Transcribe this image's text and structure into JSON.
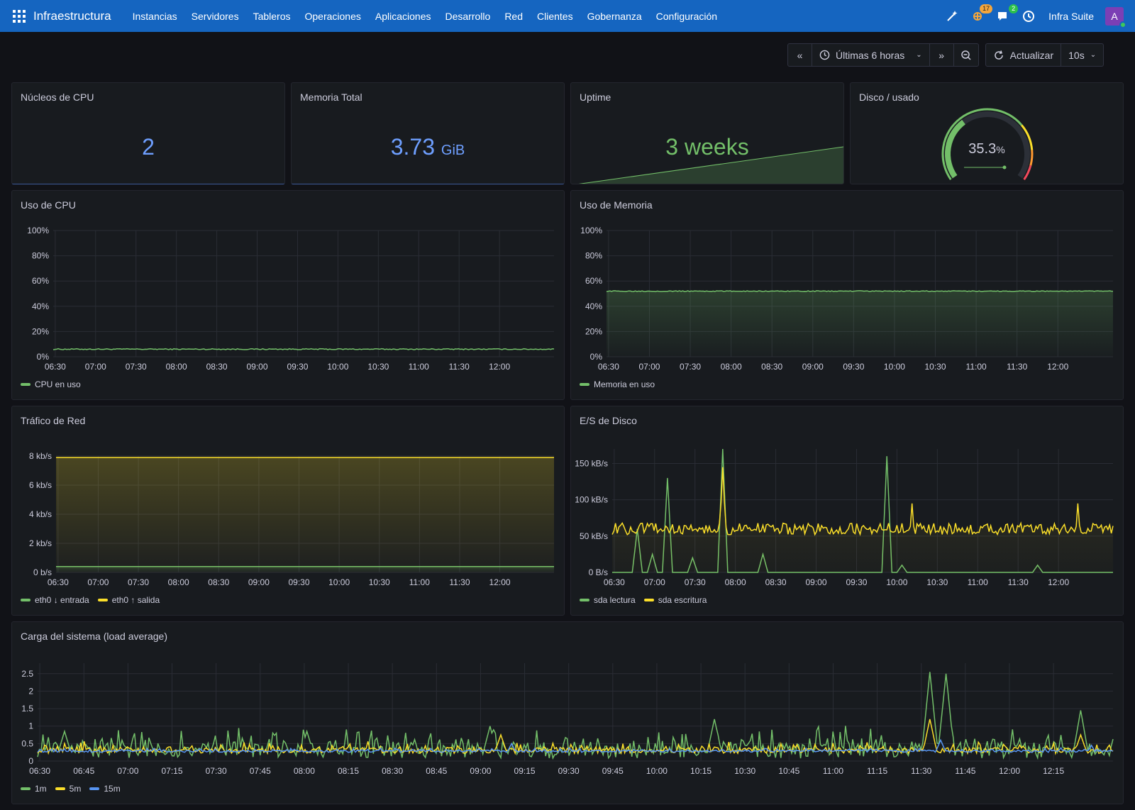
{
  "topbar": {
    "brand": "Infraestructura",
    "nav": [
      "Instancias",
      "Servidores",
      "Tableros",
      "Operaciones",
      "Aplicaciones",
      "Desarrollo",
      "Red",
      "Clientes",
      "Gobernanza",
      "Configuración"
    ],
    "icons": [
      {
        "name": "magic-wand-icon",
        "badge": ""
      },
      {
        "name": "alerts-icon",
        "badge": "17"
      },
      {
        "name": "chat-icon",
        "badge": "2"
      },
      {
        "name": "history-icon",
        "badge": ""
      }
    ],
    "org": "Infra Suite",
    "avatar": "A"
  },
  "toolbar": {
    "time_range": "Últimas 6 horas",
    "refresh_label": "Actualizar",
    "refresh_interval": "10s"
  },
  "colors": {
    "green": "#73bf69",
    "yellow": "#fade2a",
    "blue": "#5794f2",
    "stat_blue": "#6e9fff"
  },
  "stats": {
    "cpu_cores": {
      "title": "Núcleos de CPU",
      "value": "2"
    },
    "memory_total": {
      "title": "Memoria Total",
      "value": "3.73",
      "unit": "GiB"
    },
    "uptime": {
      "title": "Uptime",
      "value": "3 weeks"
    },
    "disk_used": {
      "title": "Disco / usado",
      "value": "35.3",
      "unit": "%",
      "fraction": 0.353
    }
  },
  "chart_data": [
    {
      "id": "cpu",
      "type": "line",
      "title": "Uso de CPU",
      "x_ticks": [
        "06:30",
        "07:00",
        "07:30",
        "08:00",
        "08:30",
        "09:00",
        "09:30",
        "10:00",
        "10:30",
        "11:00",
        "11:30",
        "12:00"
      ],
      "y_ticks": [
        "0%",
        "20%",
        "40%",
        "60%",
        "80%",
        "100%"
      ],
      "ylim": [
        0,
        100
      ],
      "series": [
        {
          "name": "CPU en uso",
          "color": "#73bf69",
          "level": 6,
          "noise": 0.4
        }
      ]
    },
    {
      "id": "mem",
      "type": "area",
      "title": "Uso de Memoria",
      "x_ticks": [
        "06:30",
        "07:00",
        "07:30",
        "08:00",
        "08:30",
        "09:00",
        "09:30",
        "10:00",
        "10:30",
        "11:00",
        "11:30",
        "12:00"
      ],
      "y_ticks": [
        "0%",
        "20%",
        "40%",
        "60%",
        "80%",
        "100%"
      ],
      "ylim": [
        0,
        100
      ],
      "series": [
        {
          "name": "Memoria en uso",
          "color": "#73bf69",
          "level": 52,
          "noise": 0.3
        }
      ]
    },
    {
      "id": "net",
      "type": "area",
      "title": "Tráfico de Red",
      "x_ticks": [
        "06:30",
        "07:00",
        "07:30",
        "08:00",
        "08:30",
        "09:00",
        "09:30",
        "10:00",
        "10:30",
        "11:00",
        "11:30",
        "12:00"
      ],
      "y_ticks": [
        "0 b/s",
        "2 kb/s",
        "4 kb/s",
        "6 kb/s",
        "8 kb/s"
      ],
      "ylim": [
        0,
        8
      ],
      "series": [
        {
          "name": "eth0 ↓ entrada",
          "color": "#73bf69",
          "level": 0.4,
          "noise": 0
        },
        {
          "name": "eth0 ↑ salida",
          "color": "#fade2a",
          "level": 7.9,
          "noise": 0
        }
      ]
    },
    {
      "id": "disk",
      "type": "line",
      "title": "E/S de Disco",
      "x_ticks": [
        "06:30",
        "07:00",
        "07:30",
        "08:00",
        "08:30",
        "09:00",
        "09:30",
        "10:00",
        "10:30",
        "11:00",
        "11:30",
        "12:00"
      ],
      "y_ticks": [
        "0 B/s",
        "50 kB/s",
        "100 kB/s",
        "150 kB/s"
      ],
      "ylim": [
        0,
        170
      ],
      "series": [
        {
          "name": "sda lectura",
          "color": "#73bf69",
          "level": 0,
          "noise": 0,
          "spikes": [
            [
              0.05,
              60
            ],
            [
              0.08,
              25
            ],
            [
              0.11,
              130
            ],
            [
              0.16,
              20
            ],
            [
              0.22,
              170
            ],
            [
              0.3,
              25
            ],
            [
              0.5,
              0
            ],
            [
              0.55,
              160
            ],
            [
              0.58,
              10
            ],
            [
              0.85,
              10
            ]
          ]
        },
        {
          "name": "sda escritura",
          "color": "#fade2a",
          "level": 60,
          "noise": 8,
          "spikes": [
            [
              0.22,
              145
            ],
            [
              0.3,
              65
            ],
            [
              0.6,
              95
            ],
            [
              0.93,
              95
            ]
          ]
        }
      ]
    },
    {
      "id": "load",
      "type": "line",
      "title": "Carga del sistema (load average)",
      "x_ticks": [
        "06:30",
        "06:45",
        "07:00",
        "07:15",
        "07:30",
        "07:45",
        "08:00",
        "08:15",
        "08:30",
        "08:45",
        "09:00",
        "09:15",
        "09:30",
        "09:45",
        "10:00",
        "10:15",
        "10:30",
        "10:45",
        "11:00",
        "11:15",
        "11:30",
        "11:45",
        "12:00",
        "12:15"
      ],
      "y_ticks": [
        "0",
        "0.5",
        "1",
        "1.5",
        "2",
        "2.5"
      ],
      "ylim": [
        0,
        2.8
      ],
      "series": [
        {
          "name": "1m",
          "color": "#73bf69",
          "level": 0.3,
          "noise": 0.22,
          "spikes": [
            [
              0.025,
              0.85
            ],
            [
              0.25,
              0.85
            ],
            [
              0.42,
              1.0
            ],
            [
              0.63,
              1.2
            ],
            [
              0.83,
              2.55
            ],
            [
              0.845,
              2.5
            ],
            [
              0.97,
              1.45
            ]
          ]
        },
        {
          "name": "5m",
          "color": "#fade2a",
          "level": 0.3,
          "noise": 0.08,
          "spikes": [
            [
              0.43,
              0.75
            ],
            [
              0.83,
              1.2
            ],
            [
              0.97,
              0.75
            ]
          ]
        },
        {
          "name": "15m",
          "color": "#5794f2",
          "level": 0.28,
          "noise": 0.03,
          "spikes": [
            [
              0.44,
              0.5
            ],
            [
              0.84,
              0.6
            ],
            [
              0.98,
              0.45
            ]
          ]
        }
      ]
    }
  ]
}
